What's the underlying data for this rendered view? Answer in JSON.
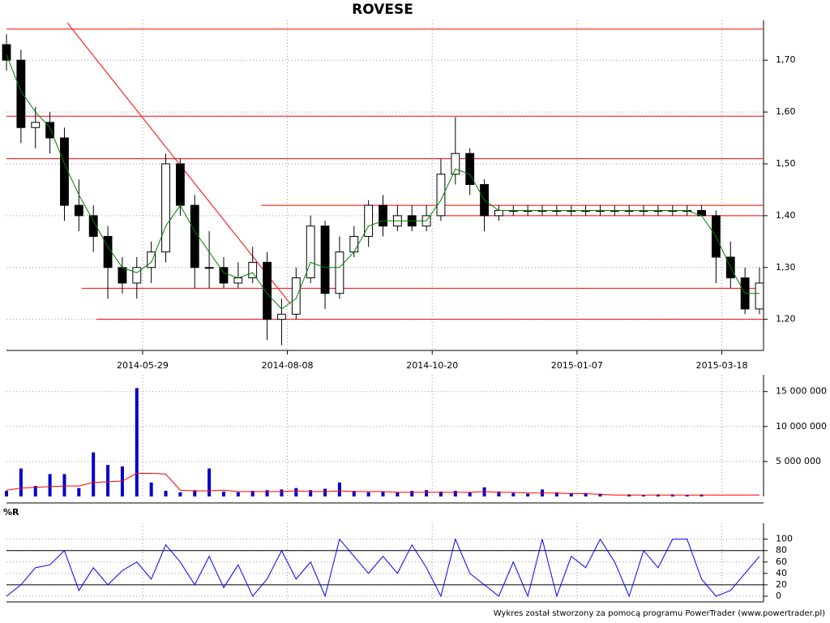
{
  "chart_data": [
    {
      "type": "candlestick",
      "title": "ROVESE",
      "x": [
        0,
        5,
        10,
        15,
        20,
        25,
        30,
        35,
        40,
        45,
        50,
        55,
        60,
        65,
        70,
        75,
        80,
        85,
        90,
        95,
        100,
        105,
        110,
        115,
        120,
        125,
        130,
        135,
        140,
        145,
        150,
        155,
        160,
        165,
        170,
        175,
        180,
        185,
        190,
        195,
        200,
        205,
        210,
        215,
        220,
        225,
        230,
        235,
        240,
        245,
        250,
        255,
        260
      ],
      "open": [
        1.73,
        1.7,
        1.57,
        1.58,
        1.55,
        1.42,
        1.4,
        1.36,
        1.3,
        1.27,
        1.3,
        1.33,
        1.5,
        1.42,
        1.3,
        1.3,
        1.27,
        1.28,
        1.31,
        1.2,
        1.21,
        1.28,
        1.38,
        1.25,
        1.33,
        1.36,
        1.42,
        1.38,
        1.4,
        1.38,
        1.4,
        1.48,
        1.52,
        1.46,
        1.4,
        1.41,
        1.41,
        1.41,
        1.41,
        1.41,
        1.41,
        1.41,
        1.41,
        1.41,
        1.41,
        1.41,
        1.41,
        1.41,
        1.41,
        1.4,
        1.32,
        1.28,
        1.22
      ],
      "high": [
        1.75,
        1.72,
        1.61,
        1.6,
        1.57,
        1.47,
        1.42,
        1.38,
        1.32,
        1.32,
        1.35,
        1.52,
        1.51,
        1.44,
        1.37,
        1.32,
        1.31,
        1.34,
        1.33,
        1.24,
        1.3,
        1.4,
        1.39,
        1.36,
        1.38,
        1.43,
        1.44,
        1.42,
        1.42,
        1.42,
        1.51,
        1.59,
        1.53,
        1.47,
        1.42,
        1.42,
        1.42,
        1.42,
        1.42,
        1.42,
        1.42,
        1.42,
        1.42,
        1.42,
        1.42,
        1.42,
        1.42,
        1.42,
        1.42,
        1.41,
        1.35,
        1.3,
        1.3
      ],
      "low": [
        1.68,
        1.54,
        1.53,
        1.52,
        1.39,
        1.37,
        1.33,
        1.24,
        1.25,
        1.24,
        1.27,
        1.31,
        1.4,
        1.26,
        1.26,
        1.26,
        1.26,
        1.27,
        1.16,
        1.15,
        1.2,
        1.27,
        1.22,
        1.24,
        1.32,
        1.34,
        1.36,
        1.37,
        1.37,
        1.37,
        1.39,
        1.46,
        1.44,
        1.37,
        1.39,
        1.4,
        1.4,
        1.4,
        1.4,
        1.4,
        1.4,
        1.4,
        1.4,
        1.4,
        1.4,
        1.4,
        1.4,
        1.4,
        1.4,
        1.27,
        1.26,
        1.21,
        1.21
      ],
      "close": [
        1.7,
        1.57,
        1.58,
        1.55,
        1.42,
        1.4,
        1.36,
        1.3,
        1.27,
        1.3,
        1.33,
        1.5,
        1.42,
        1.3,
        1.3,
        1.27,
        1.28,
        1.31,
        1.2,
        1.21,
        1.28,
        1.38,
        1.25,
        1.33,
        1.36,
        1.42,
        1.38,
        1.4,
        1.38,
        1.4,
        1.48,
        1.52,
        1.46,
        1.4,
        1.41,
        1.41,
        1.41,
        1.41,
        1.41,
        1.41,
        1.41,
        1.41,
        1.41,
        1.41,
        1.41,
        1.41,
        1.41,
        1.41,
        1.4,
        1.32,
        1.28,
        1.22,
        1.27
      ],
      "ma": [
        1.71,
        1.64,
        1.6,
        1.57,
        1.5,
        1.44,
        1.39,
        1.34,
        1.3,
        1.29,
        1.31,
        1.38,
        1.42,
        1.37,
        1.33,
        1.29,
        1.28,
        1.29,
        1.25,
        1.22,
        1.24,
        1.31,
        1.3,
        1.3,
        1.33,
        1.38,
        1.39,
        1.39,
        1.39,
        1.39,
        1.43,
        1.49,
        1.48,
        1.43,
        1.41,
        1.41,
        1.41,
        1.41,
        1.41,
        1.41,
        1.41,
        1.41,
        1.41,
        1.41,
        1.41,
        1.41,
        1.41,
        1.41,
        1.4,
        1.36,
        1.3,
        1.25,
        1.25
      ],
      "ma_color": "#008000",
      "up_color": "#ffffff",
      "down_color": "#000000",
      "xlim": [
        0,
        260
      ],
      "xticks": [
        {
          "value": 47,
          "label": "2014-05-29"
        },
        {
          "value": 97,
          "label": "2014-08-08"
        },
        {
          "value": 147,
          "label": "2014-10-20"
        },
        {
          "value": 197,
          "label": "2015-01-07"
        },
        {
          "value": 247,
          "label": "2015-03-18"
        }
      ],
      "ylim": [
        1.14,
        1.777
      ],
      "yticks": [
        {
          "value": 1.2,
          "label": "1,20"
        },
        {
          "value": 1.3,
          "label": "1,30"
        },
        {
          "value": 1.4,
          "label": "1,40"
        },
        {
          "value": 1.5,
          "label": "1,50"
        },
        {
          "value": 1.6,
          "label": "1,60"
        },
        {
          "value": 1.7,
          "label": "1,70"
        }
      ],
      "levels": [
        {
          "value": 1.76,
          "from": 0
        },
        {
          "value": 1.592,
          "from": 0
        },
        {
          "value": 1.51,
          "from": 0
        },
        {
          "value": 1.42,
          "from": 88
        },
        {
          "value": 1.4,
          "from": 149
        },
        {
          "value": 1.26,
          "from": 26
        },
        {
          "value": 1.2,
          "from": 31
        }
      ],
      "trendline": {
        "x": [
          21,
          98
        ],
        "y": [
          1.772,
          1.23
        ]
      },
      "line_color": "#ff0000",
      "grid": true
    },
    {
      "type": "bar",
      "color": "#0000cc",
      "values": [
        800000,
        4000000,
        1500000,
        3200000,
        3200000,
        1200000,
        6300000,
        4500000,
        4300000,
        15500000,
        2000000,
        800000,
        600000,
        900000,
        4000000,
        700000,
        600000,
        800000,
        900000,
        1000000,
        1200000,
        900000,
        1100000,
        2000000,
        800000,
        600000,
        700000,
        600000,
        800000,
        900000,
        700000,
        800000,
        600000,
        1300000,
        700000,
        500000,
        400000,
        1000000,
        600000,
        500000,
        500000,
        400000,
        0,
        300000,
        200000,
        300000,
        300000,
        200000,
        300000,
        0,
        0,
        0,
        0
      ],
      "ma": [
        900000,
        1200000,
        1300000,
        1400000,
        1500000,
        1500000,
        2000000,
        2100000,
        2200000,
        3300000,
        3300000,
        3200000,
        900000,
        800000,
        800000,
        900000,
        700000,
        700000,
        700000,
        700000,
        800000,
        700000,
        700000,
        800000,
        700000,
        700000,
        700000,
        600000,
        600000,
        600000,
        600000,
        600000,
        600000,
        700000,
        600000,
        600000,
        500000,
        500000,
        500000,
        400000,
        400000,
        300000,
        200000,
        200000,
        200000,
        200000,
        200000,
        200000,
        200000,
        200000,
        200000,
        200000,
        200000
      ],
      "ma_color": "#ff0000",
      "ylim": [
        0,
        17400000
      ],
      "yticks": [
        {
          "value": 5000000,
          "label": "5 000 000"
        },
        {
          "value": 10000000,
          "label": "10 000 000"
        },
        {
          "value": 15000000,
          "label": "15 000 000"
        }
      ],
      "grid": true
    },
    {
      "type": "line",
      "title": "%R",
      "color": "#0000ff",
      "values": [
        0,
        20,
        50,
        55,
        80,
        10,
        50,
        20,
        45,
        60,
        30,
        90,
        60,
        20,
        70,
        15,
        55,
        0,
        30,
        80,
        30,
        60,
        0,
        100,
        70,
        40,
        70,
        40,
        90,
        50,
        0,
        100,
        40,
        20,
        0,
        60,
        0,
        100,
        0,
        70,
        50,
        100,
        60,
        0,
        80,
        50,
        100,
        100,
        30,
        0,
        10,
        40,
        70
      ],
      "ylim": [
        -10,
        128
      ],
      "yticks": [
        0,
        20,
        40,
        60,
        80,
        100
      ],
      "hlines": [
        20,
        80
      ],
      "grid": true
    }
  ],
  "footer": "Wykres został stworzony za pomocą programu PowerTrader (www.powertrader.pl)"
}
